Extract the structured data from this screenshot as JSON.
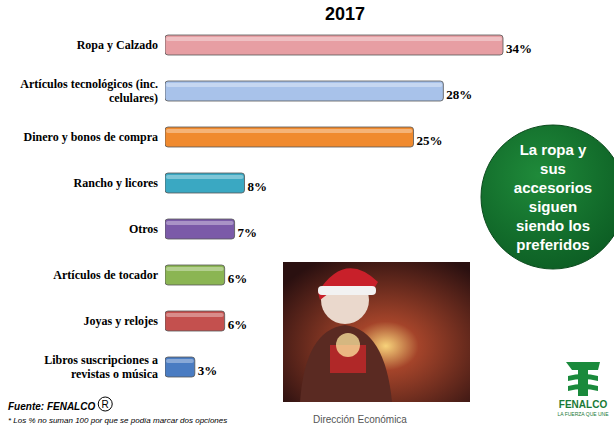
{
  "chart_data": {
    "type": "bar",
    "title": "2017",
    "orientation": "horizontal",
    "categories": [
      "Ropa y Calzado",
      "Artículos tecnológicos (inc. celulares)",
      "Dinero y bonos de compra",
      "Rancho y licores",
      "Otros",
      "Artículos de tocador",
      "Joyas y relojes",
      "Libros suscripciones a revistas o música"
    ],
    "values": [
      34,
      28,
      25,
      8,
      7,
      6,
      6,
      3
    ],
    "value_labels": [
      "34%",
      "28%",
      "25%",
      "8%",
      "7%",
      "6%",
      "6%",
      "3%"
    ],
    "colors": [
      "#e79ea3",
      "#a8c2ea",
      "#f08a2e",
      "#3aa8c2",
      "#7b5aa8",
      "#8bb553",
      "#c4504e",
      "#4a7cc2"
    ],
    "xlim": [
      0,
      34
    ],
    "data_labels": true,
    "tick_labels": "y",
    "annotation": "La ropa y sus accesorios siguen siendo los preferidos",
    "source": "Fuente: FENALCO",
    "source_mark": "R",
    "footnote": "* Los % no suman 100 por que se podía marcar dos opciones",
    "credit": "Dirección Económica",
    "logo": {
      "name": "FENALCO",
      "tagline": "LA FUERZA QUE UNE"
    }
  }
}
